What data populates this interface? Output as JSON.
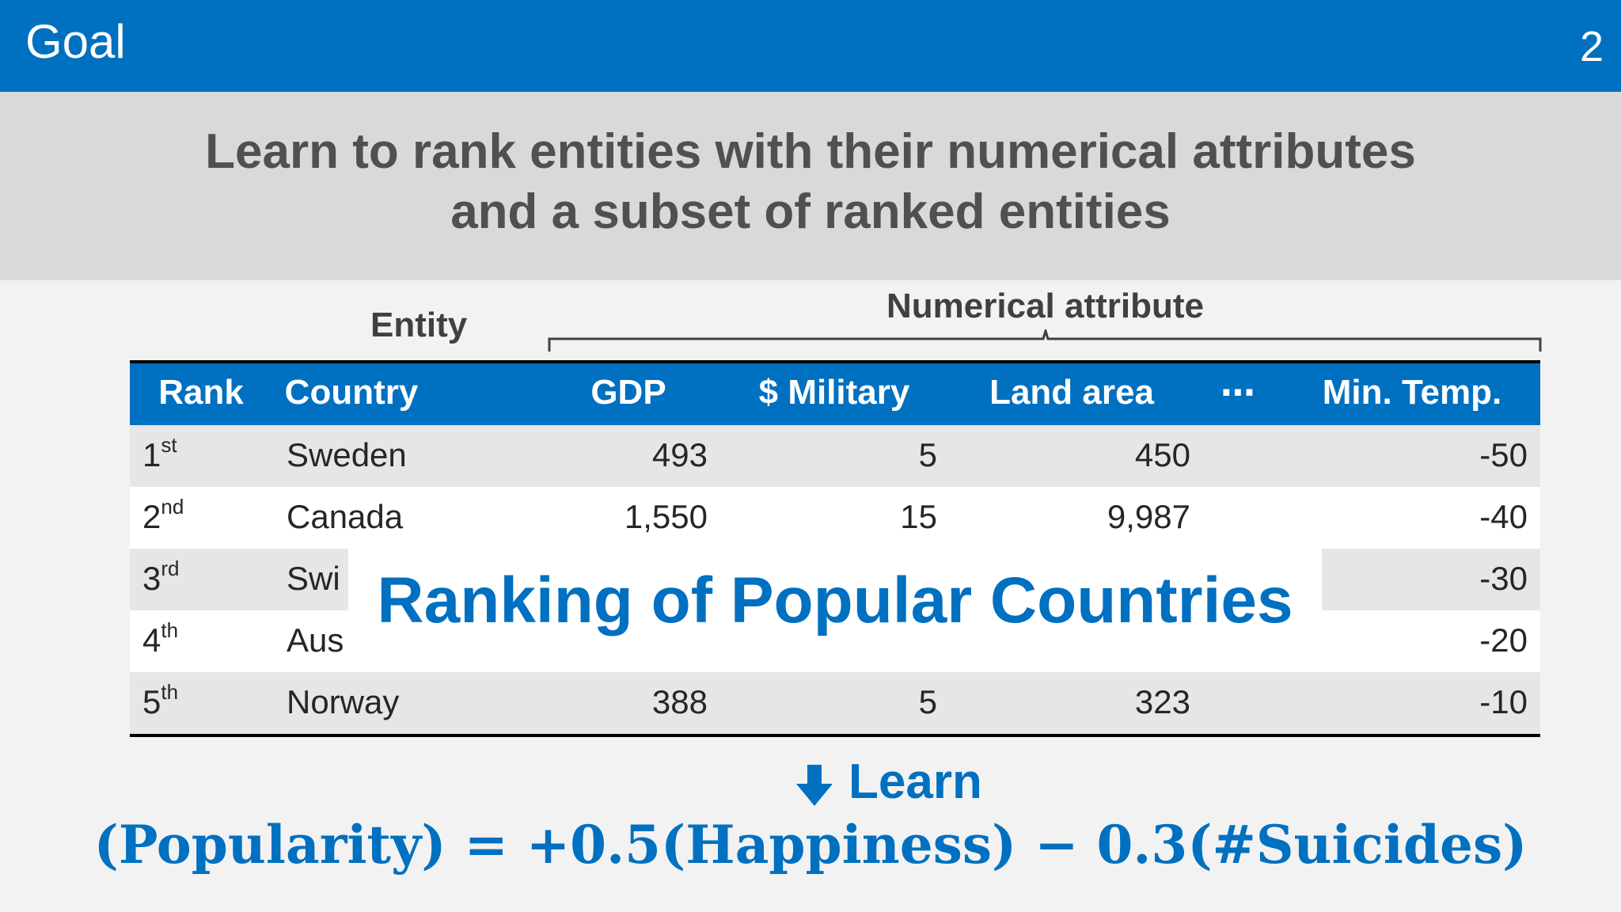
{
  "header": {
    "title": "Goal",
    "page_number": "2"
  },
  "banner": {
    "line1": "Learn to rank entities with their numerical attributes",
    "line2": "and a subset of ranked entities"
  },
  "labels": {
    "entity": "Entity",
    "numerical": "Numerical attribute"
  },
  "table": {
    "headers": [
      "Rank",
      "Country",
      "GDP",
      "$ Military",
      "Land area",
      "⋯",
      "Min. Temp."
    ],
    "rows": [
      {
        "rank": "1",
        "suffix": "st",
        "country": "Sweden",
        "gdp": "493",
        "military": "5",
        "land": "450",
        "mintemp": "-50"
      },
      {
        "rank": "2",
        "suffix": "nd",
        "country": "Canada",
        "gdp": "1,550",
        "military": "15",
        "land": "9,987",
        "mintemp": "-40"
      },
      {
        "rank": "3",
        "suffix": "rd",
        "country": "Swi",
        "gdp": "",
        "military": "",
        "land": "",
        "mintemp": "-30"
      },
      {
        "rank": "4",
        "suffix": "th",
        "country": "Aus",
        "gdp": "",
        "military": "",
        "land": "",
        "mintemp": "-20"
      },
      {
        "rank": "5",
        "suffix": "th",
        "country": "Norway",
        "gdp": "388",
        "military": "5",
        "land": "323",
        "mintemp": "-10"
      }
    ]
  },
  "overlay": {
    "text": "Ranking of Popular Countries"
  },
  "learn": {
    "label": "Learn"
  },
  "formula": {
    "text": "(Popularity) = +0.5(Happiness) − 0.3(#Suicides)"
  },
  "colors": {
    "accent": "#0070c0",
    "banner": "#d9d9d9",
    "row_shade": "#e6e6e6"
  }
}
